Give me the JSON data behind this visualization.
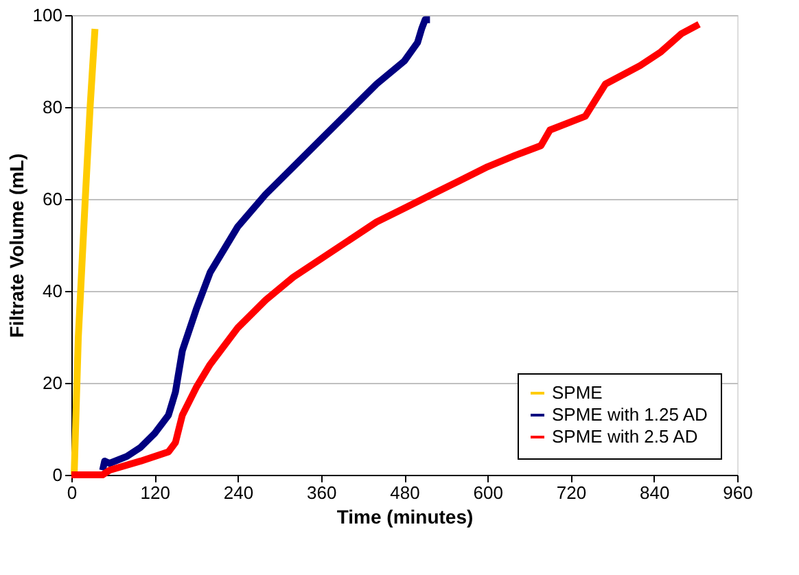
{
  "chart_data": {
    "type": "line",
    "xlabel": "Time (minutes)",
    "ylabel": "Filtrate Volume (mL)",
    "xlim": [
      0,
      960
    ],
    "xticks": [
      0,
      120,
      240,
      360,
      480,
      600,
      720,
      840,
      960
    ],
    "ylim": [
      0,
      100
    ],
    "yticks": [
      0,
      20,
      40,
      60,
      80,
      100
    ],
    "grid": "y",
    "legend": "bottom right",
    "line_style": "solid",
    "series": [
      {
        "name": "SPME",
        "color": "#ffcc00",
        "x": [
          4,
          10,
          15,
          20,
          27,
          34
        ],
        "values": [
          0,
          30,
          45,
          60,
          80,
          97
        ]
      },
      {
        "name": "SPME with 1.25 AD",
        "color": "#000080",
        "x": [
          45,
          48,
          55,
          80,
          100,
          120,
          140,
          150,
          160,
          180,
          200,
          240,
          280,
          320,
          360,
          400,
          440,
          480,
          499,
          505,
          510,
          517
        ],
        "values": [
          1,
          3,
          2.5,
          4,
          6,
          9,
          13,
          18,
          27,
          36,
          44,
          54,
          61,
          67,
          73,
          79,
          85,
          90,
          94,
          97,
          99,
          99
        ]
      },
      {
        "name": "SPME with 2.5 AD",
        "color": "#ff0000",
        "x": [
          0,
          45,
          55,
          100,
          140,
          150,
          160,
          180,
          200,
          240,
          280,
          320,
          360,
          400,
          440,
          480,
          520,
          560,
          600,
          640,
          677,
          690,
          741,
          770,
          820,
          850,
          880,
          905
        ],
        "values": [
          0,
          0,
          1,
          3,
          5,
          7,
          13,
          19,
          24,
          32,
          38,
          43,
          47,
          51,
          55,
          58,
          61,
          64,
          67,
          69.5,
          71.6,
          75,
          78,
          85,
          89,
          92,
          96,
          98
        ]
      }
    ]
  }
}
